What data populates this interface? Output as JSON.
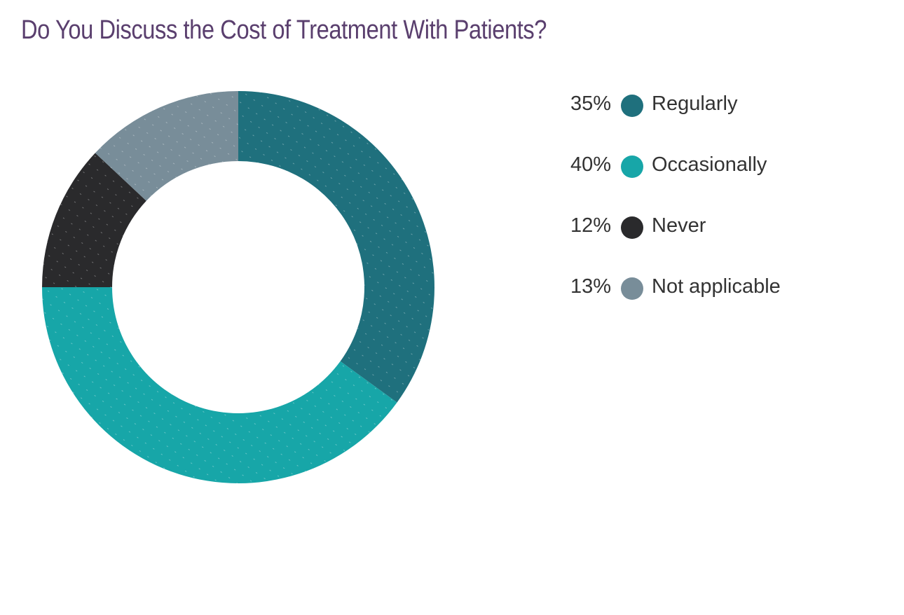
{
  "chart_data": {
    "type": "pie",
    "title": "Do You Discuss the Cost of Treatment With Patients?",
    "donut": true,
    "legend_position": "right",
    "value_suffix": "%",
    "slices": [
      {
        "label": "Regularly",
        "value": 35,
        "display": "35%",
        "color": "#1f707d"
      },
      {
        "label": "Occasionally",
        "value": 40,
        "display": "40%",
        "color": "#17a6a8"
      },
      {
        "label": "Never",
        "value": 12,
        "display": "12%",
        "color": "#2a2a2c"
      },
      {
        "label": "Not applicable",
        "value": 13,
        "display": "13%",
        "color": "#788d99"
      }
    ]
  }
}
